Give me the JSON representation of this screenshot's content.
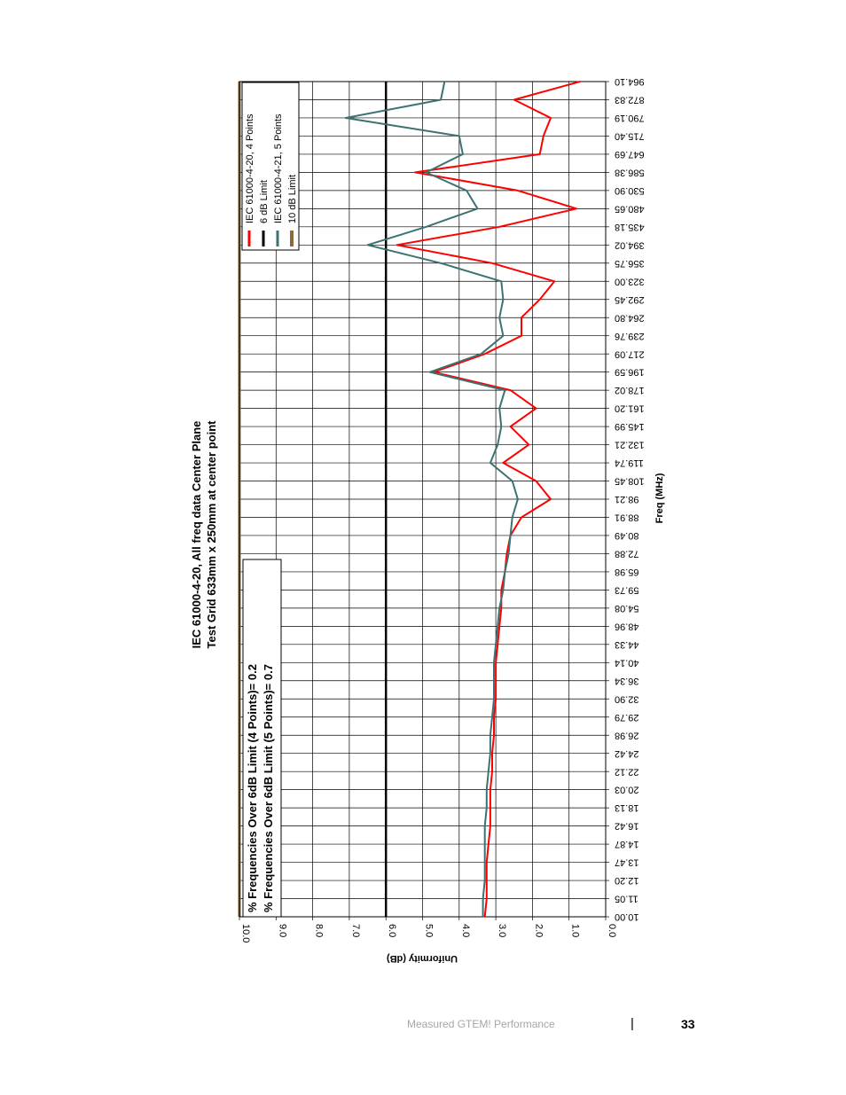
{
  "chart_data": {
    "type": "line",
    "title": "IEC 61000-4-20, All freq data Center Plane",
    "subtitle": "Test Grid 633mm x 250mm at center point",
    "xlabel": "Freq (MHz)",
    "ylabel": "Uniformity (dB)",
    "ylim": [
      0,
      10
    ],
    "y_ticks": [
      "0.0",
      "1.0",
      "2.0",
      "3.0",
      "4.0",
      "5.0",
      "6.0",
      "7.0",
      "8.0",
      "9.0",
      "10.0"
    ],
    "x_ticks": [
      "10.00",
      "11.05",
      "12.20",
      "13.47",
      "14.87",
      "16.42",
      "18.13",
      "20.03",
      "22.12",
      "24.42",
      "26.98",
      "29.79",
      "32.90",
      "36.34",
      "40.14",
      "44.33",
      "48.96",
      "54.08",
      "59.73",
      "65.98",
      "72.88",
      "80.49",
      "88.91",
      "98.21",
      "108.45",
      "119.74",
      "132.21",
      "145.99",
      "161.20",
      "178.02",
      "196.59",
      "217.09",
      "239.76",
      "264.80",
      "292.45",
      "323.00",
      "356.75",
      "394.02",
      "435.18",
      "480.65",
      "530.90",
      "586.38",
      "647.69",
      "715.40",
      "790.19",
      "872.83",
      "964.10"
    ],
    "grid": true,
    "orientation": "rotated",
    "legend_position": "top-right",
    "legend": [
      {
        "name": "IEC 61000-4-20, 4 Points",
        "color": "#ff0000"
      },
      {
        "name": "6 dB Limit",
        "color": "#000000"
      },
      {
        "name": "IEC 61000-4-21, 5 Points",
        "color": "#3d7272"
      },
      {
        "name": "10 dB Limit",
        "color": "#8b6b3d"
      }
    ],
    "annotation": [
      "% Frequencies Over 6dB Limit (4 Points)= 0.2",
      "% Frequencies Over 6dB Limit (5 Points)= 0.7"
    ],
    "series": [
      {
        "name": "IEC 61000-4-20, 4 Points",
        "color": "#ff0000",
        "values": [
          3.3,
          3.25,
          3.25,
          3.25,
          3.2,
          3.15,
          3.15,
          3.15,
          3.1,
          3.1,
          3.05,
          3.05,
          3.0,
          3.0,
          3.0,
          2.95,
          2.9,
          2.85,
          2.85,
          2.75,
          2.7,
          2.6,
          2.3,
          1.5,
          1.9,
          2.8,
          2.1,
          2.6,
          1.9,
          2.6,
          4.7,
          3.3,
          2.3,
          2.3,
          1.8,
          1.4,
          3.1,
          5.7,
          2.9,
          0.8,
          2.4,
          5.2,
          1.8,
          1.7,
          1.5,
          2.5,
          0.7
        ]
      },
      {
        "name": "IEC 61000-4-21, 5 Points",
        "color": "#3d7272",
        "values": [
          3.35,
          3.35,
          3.3,
          3.3,
          3.3,
          3.3,
          3.25,
          3.25,
          3.2,
          3.15,
          3.15,
          3.1,
          3.05,
          3.05,
          3.05,
          3.0,
          2.95,
          2.9,
          2.8,
          2.75,
          2.65,
          2.6,
          2.55,
          2.4,
          2.55,
          3.15,
          2.95,
          2.85,
          2.9,
          2.75,
          4.8,
          3.4,
          2.8,
          2.9,
          2.8,
          2.85,
          4.5,
          6.5,
          4.9,
          3.5,
          3.8,
          4.9,
          3.9,
          4.0,
          7.1,
          4.5,
          4.4
        ]
      },
      {
        "name": "6 dB Limit",
        "color": "#000000",
        "constant": 6.0
      },
      {
        "name": "10 dB Limit",
        "color": "#8b6b3d",
        "constant": 10.0
      }
    ]
  },
  "footer": {
    "section": "Measured GTEM! Performance",
    "separator": "|",
    "page_number": "33"
  }
}
